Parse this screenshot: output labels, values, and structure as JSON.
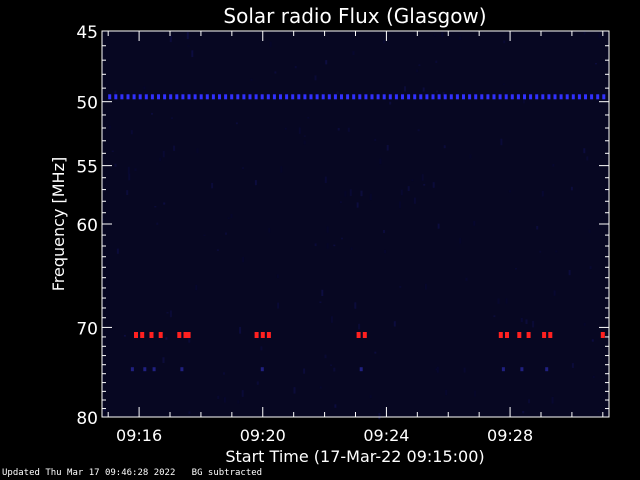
{
  "chart_data": {
    "type": "heatmap",
    "title": "Solar radio Flux (Glasgow)",
    "xlabel": "Start Time (17-Mar-22 09:15:00)",
    "ylabel": "Frequency [MHz]",
    "x_start": "09:15",
    "x_end": "09:31",
    "xlim_minutes_after_0900": [
      14.8,
      31.2
    ],
    "x_ticks": [
      {
        "label": "09:16",
        "minute": 16
      },
      {
        "label": "09:20",
        "minute": 20
      },
      {
        "label": "09:24",
        "minute": 24
      },
      {
        "label": "09:28",
        "minute": 28
      }
    ],
    "ylim": [
      45,
      80
    ],
    "y_scale": "log",
    "y_inverted": true,
    "y_ticks": [
      45,
      50,
      55,
      60,
      70,
      80
    ],
    "features": [
      {
        "name": "interference line",
        "frequency_mhz": 49.6,
        "color": "#3030ff",
        "x_from_minute": 15.0,
        "x_to_minute": 31.0
      },
      {
        "name": "interference bursts",
        "frequency_mhz": 70.8,
        "color": "#ff2020",
        "minutes": [
          15.9,
          16.1,
          16.4,
          16.7,
          17.3,
          17.5,
          17.6,
          19.8,
          20.0,
          20.2,
          23.1,
          23.3,
          27.7,
          27.9,
          28.3,
          28.6,
          29.1,
          29.3,
          31.0
        ]
      },
      {
        "name": "faint band",
        "frequency_mhz": 74.5,
        "color": "#202080",
        "minutes": [
          15.8,
          16.2,
          16.5,
          17.4,
          20.0,
          23.2,
          27.8,
          28.4,
          29.2
        ]
      }
    ],
    "background_color": "#070722",
    "grid": false
  },
  "footer": {
    "updated": "Updated Thu Mar 17 09:46:28 2022",
    "note": "BG subtracted"
  }
}
